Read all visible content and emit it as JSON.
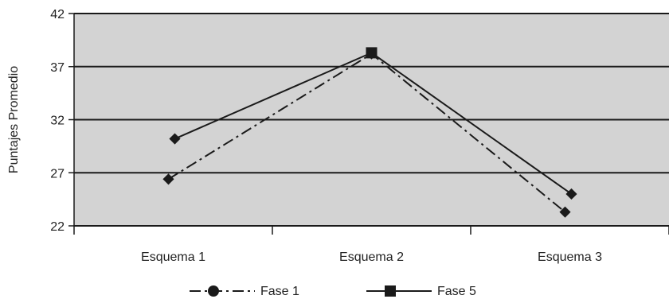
{
  "chart_data": {
    "type": "line",
    "title": "",
    "xlabel": "",
    "ylabel": "Puntajes Promedio",
    "categories": [
      "Esquema 1",
      "Esquema 2",
      "Esquema 3"
    ],
    "ylim": [
      22,
      42
    ],
    "yticks": [
      22,
      27,
      32,
      37,
      42
    ],
    "grid": true,
    "legend_position": "bottom",
    "series": [
      {
        "name": "Fase 1",
        "values": [
          26.4,
          38.2,
          23.3
        ],
        "line_style": "dash-dot",
        "marker": "circle"
      },
      {
        "name": "Fase 5",
        "values": [
          30.2,
          38.3,
          25.0
        ],
        "line_style": "solid",
        "marker": "square"
      }
    ],
    "colors": {
      "plot_background": "#d3d3d3",
      "line": "#1a1a1a",
      "grid": "#1a1a1a"
    }
  }
}
